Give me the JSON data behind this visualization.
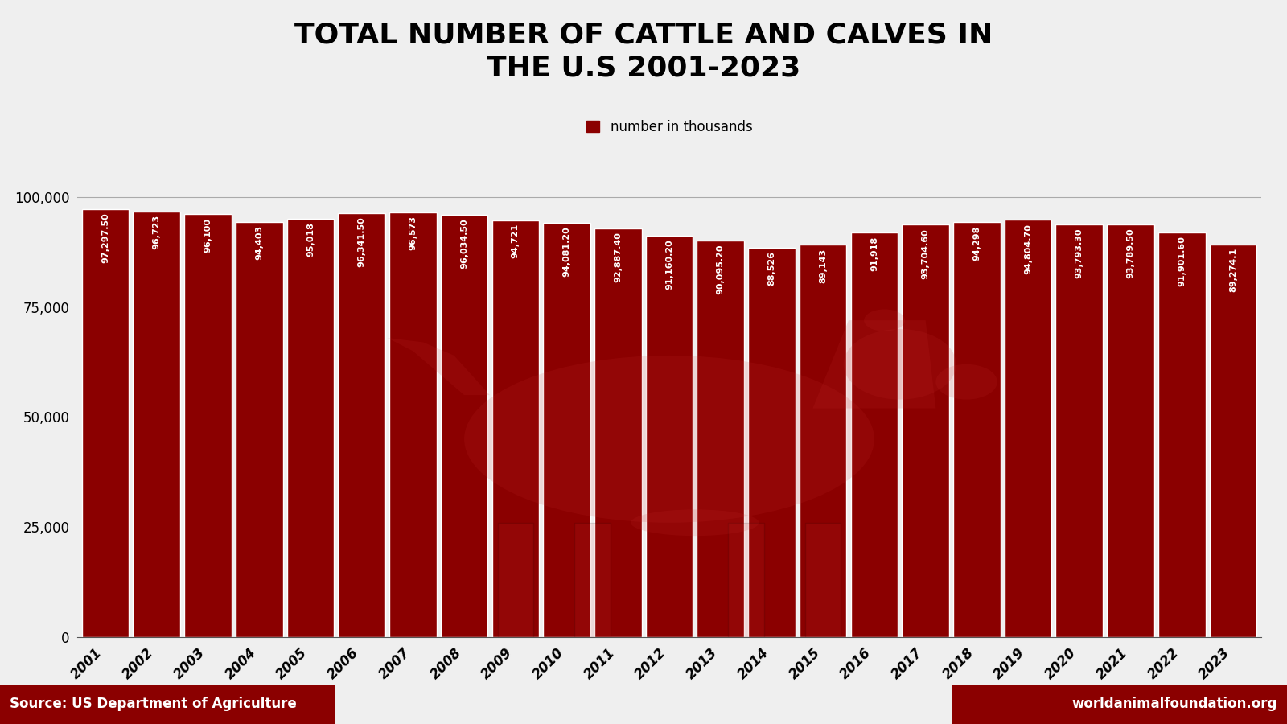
{
  "title_line1": "TOTAL NUMBER OF CATTLE AND CALVES IN",
  "title_line2": "THE U.S 2001-2023",
  "legend_label": "number in thousands",
  "years": [
    2001,
    2002,
    2003,
    2004,
    2005,
    2006,
    2007,
    2008,
    2009,
    2010,
    2011,
    2012,
    2013,
    2014,
    2015,
    2016,
    2017,
    2018,
    2019,
    2020,
    2021,
    2022,
    2023
  ],
  "values": [
    97297.5,
    96723,
    96100,
    94403,
    95018,
    96341.5,
    96573,
    96034.5,
    94721,
    94081.2,
    92887.4,
    91160.2,
    90095.2,
    88526,
    89143,
    91918,
    93704.6,
    94298,
    94804.7,
    93793.3,
    93789.5,
    91901.6,
    89274.1
  ],
  "value_labels": [
    "97,297.50",
    "96,723",
    "96,100",
    "94,403",
    "95,018",
    "96,341.50",
    "96,573",
    "96,034.50",
    "94,721",
    "94,081.20",
    "92,887.40",
    "91,160.20",
    "90,095.20",
    "88,526",
    "89,143",
    "91,918",
    "93,704.60",
    "94,298",
    "94,804.70",
    "93,793.30",
    "93,789.50",
    "91,901.60",
    "89,274.1"
  ],
  "bar_color": "#8B0000",
  "bar_edge_color": "#ffffff",
  "background_color": "#efefef",
  "ylim": [
    0,
    102000
  ],
  "yticks": [
    0,
    25000,
    50000,
    75000,
    100000
  ],
  "source_text": "Source: US Department of Agriculture",
  "website_text": "worldanimalfoundation.org",
  "footer_bg": "#8B0000",
  "hline_y": 100000,
  "hline_color": "#aaaaaa",
  "label_fontsize": 8.0,
  "title_fontsize": 26,
  "tick_fontsize": 12,
  "legend_fontsize": 12,
  "footer_fontsize": 12
}
